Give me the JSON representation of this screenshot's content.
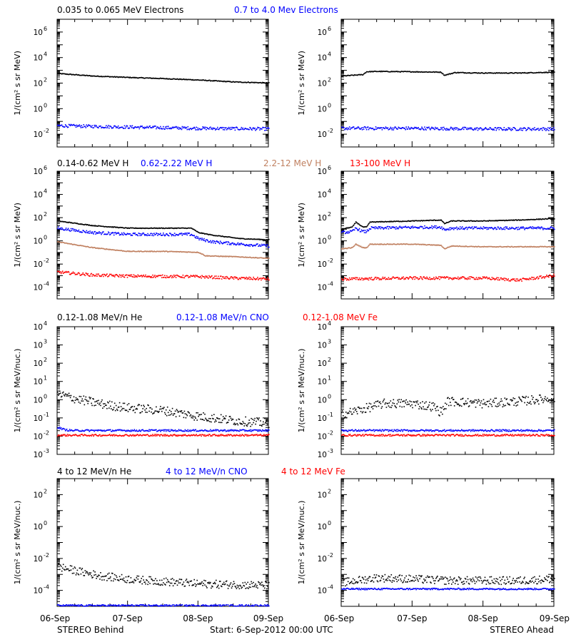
{
  "footer": {
    "left": "STEREO Behind",
    "center": "Start:  6-Sep-2012 00:00 UTC",
    "right": "STEREO Ahead"
  },
  "x_ticks": [
    "06-Sep",
    "07-Sep",
    "08-Sep",
    "09-Sep"
  ],
  "colors": {
    "black": "#000000",
    "blue": "#0000ff",
    "tan": "#c08060",
    "red": "#ff0000"
  },
  "chart_data": [
    {
      "type": "scatter",
      "row": 1,
      "y_scale": "log",
      "ylabel": "1/(cm² s sr MeV)",
      "ylim": [
        0.001,
        10000000
      ],
      "y_tick_exponents": [
        6,
        4,
        2,
        0,
        -2
      ],
      "x_range_days": [
        0,
        3
      ],
      "series_names": [
        "0.035 to 0.065 MeV Electrons",
        "0.7 to 4.0 Mev Electrons"
      ],
      "series_colors": [
        "#000000",
        "#0000ff"
      ],
      "behind": [
        {
          "name": "0.035 to 0.065 MeV Electrons",
          "color": "#000000",
          "x": [
            0,
            0.5,
            1,
            1.5,
            2,
            2.5,
            3
          ],
          "y": [
            550,
            350,
            270,
            220,
            170,
            120,
            100
          ]
        },
        {
          "name": "0.7 to 4.0 Mev Electrons",
          "color": "#0000ff",
          "x": [
            0,
            1,
            2,
            3
          ],
          "y": [
            0.045,
            0.035,
            0.028,
            0.025
          ]
        }
      ],
      "ahead": [
        {
          "name": "0.035 to 0.065 MeV Electrons",
          "color": "#000000",
          "x": [
            0,
            0.3,
            0.35,
            0.5,
            1,
            1.4,
            1.45,
            1.6,
            2,
            2.5,
            3
          ],
          "y": [
            350,
            450,
            750,
            800,
            750,
            700,
            400,
            650,
            600,
            600,
            700
          ]
        },
        {
          "name": "0.7 to 4.0 Mev Electrons",
          "color": "#0000ff",
          "x": [
            0,
            1,
            2,
            3
          ],
          "y": [
            0.028,
            0.028,
            0.025,
            0.025
          ]
        }
      ]
    },
    {
      "type": "scatter",
      "row": 2,
      "y_scale": "log",
      "ylabel": "1/(cm² s sr MeV)",
      "ylim": [
        1e-05,
        1000000
      ],
      "y_tick_exponents": [
        6,
        4,
        2,
        0,
        -2,
        -4
      ],
      "x_range_days": [
        0,
        3
      ],
      "series_names": [
        "0.14-0.62 MeV H",
        "0.62-2.22 MeV H",
        "2.2-12 MeV H",
        "13-100 MeV H"
      ],
      "series_colors": [
        "#000000",
        "#0000ff",
        "#c08060",
        "#ff0000"
      ],
      "behind": [
        {
          "name": "0.14-0.62 MeV H",
          "color": "#000000",
          "x": [
            0,
            0.5,
            1,
            1.5,
            1.9,
            2.0,
            2.2,
            2.6,
            3
          ],
          "y": [
            50,
            20,
            12,
            12,
            12,
            5,
            3,
            1.5,
            1.2
          ]
        },
        {
          "name": "0.62-2.22 MeV H",
          "color": "#0000ff",
          "x": [
            0,
            0.5,
            1,
            1.5,
            1.9,
            2.0,
            2.2,
            2.6,
            3
          ],
          "y": [
            12,
            5,
            3.5,
            3.5,
            3.5,
            1.5,
            0.8,
            0.5,
            0.35
          ]
        },
        {
          "name": "2.2-12 MeV H",
          "color": "#c08060",
          "x": [
            0,
            0.5,
            1,
            1.5,
            2,
            2.1,
            2.6,
            3
          ],
          "y": [
            0.8,
            0.25,
            0.12,
            0.12,
            0.1,
            0.05,
            0.04,
            0.03
          ]
        },
        {
          "name": "13-100 MeV H",
          "color": "#ff0000",
          "x": [
            0,
            0.5,
            1,
            2,
            2.5,
            3
          ],
          "y": [
            0.002,
            0.0011,
            0.0009,
            0.0008,
            0.0006,
            0.0005
          ]
        }
      ],
      "ahead": [
        {
          "name": "0.14-0.62 MeV H",
          "color": "#000000",
          "x": [
            0,
            0.15,
            0.2,
            0.3,
            0.35,
            0.4,
            1,
            1.4,
            1.45,
            1.55,
            2,
            2.5,
            3
          ],
          "y": [
            10,
            15,
            40,
            15,
            15,
            40,
            50,
            60,
            30,
            50,
            50,
            60,
            80
          ]
        },
        {
          "name": "0.62-2.22 MeV H",
          "color": "#0000ff",
          "x": [
            0,
            0.15,
            0.2,
            0.3,
            0.35,
            0.4,
            1,
            1.4,
            1.45,
            1.55,
            2,
            2.5,
            3
          ],
          "y": [
            5,
            6,
            12,
            6,
            6,
            12,
            14,
            15,
            9,
            12,
            12,
            12,
            12
          ]
        },
        {
          "name": "2.2-12 MeV H",
          "color": "#c08060",
          "x": [
            0,
            0.15,
            0.2,
            0.3,
            0.35,
            0.4,
            1,
            1.4,
            1.45,
            1.55,
            2,
            2.5,
            3
          ],
          "y": [
            0.2,
            0.25,
            0.5,
            0.25,
            0.25,
            0.5,
            0.5,
            0.4,
            0.2,
            0.35,
            0.3,
            0.3,
            0.3
          ]
        },
        {
          "name": "13-100 MeV H",
          "color": "#ff0000",
          "x": [
            0,
            1,
            2,
            2.5,
            3
          ],
          "y": [
            0.0005,
            0.0006,
            0.0006,
            0.0004,
            0.001
          ]
        }
      ]
    },
    {
      "type": "scatter",
      "row": 3,
      "y_scale": "log",
      "ylabel": "1/(cm² s sr MeV/nuc.)",
      "ylim": [
        0.001,
        10000
      ],
      "y_tick_exponents": [
        4,
        3,
        2,
        1,
        0,
        -1,
        -2,
        -3
      ],
      "x_range_days": [
        0,
        3
      ],
      "series_names": [
        "0.12-1.08 MeV/n He",
        "0.12-1.08 MeV/n CNO",
        "0.12-1.08 MeV Fe"
      ],
      "series_colors": [
        "#000000",
        "#0000ff",
        "#ff0000"
      ],
      "behind": [
        {
          "name": "0.12-1.08 MeV/n He",
          "color": "#000000",
          "x": [
            0,
            0.3,
            0.7,
            1,
            1.5,
            2,
            2.5,
            3
          ],
          "y": [
            2,
            1,
            0.5,
            0.35,
            0.25,
            0.12,
            0.07,
            0.05
          ]
        },
        {
          "name": "0.12-1.08 MeV/n CNO",
          "color": "#0000ff",
          "x": [
            0,
            0.1,
            0.2,
            1,
            2,
            3
          ],
          "y": [
            0.03,
            0.022,
            0.02,
            0.02,
            0.02,
            0.02
          ]
        },
        {
          "name": "0.12-1.08 MeV Fe",
          "color": "#ff0000",
          "x": [
            0,
            1,
            2,
            3
          ],
          "y": [
            0.011,
            0.011,
            0.011,
            0.011
          ]
        }
      ],
      "ahead": [
        {
          "name": "0.12-1.08 MeV/n He",
          "color": "#000000",
          "x": [
            0,
            0.3,
            0.6,
            1,
            1.3,
            1.4,
            1.5,
            2,
            2.5,
            3
          ],
          "y": [
            0.15,
            0.3,
            0.6,
            0.6,
            0.4,
            0.2,
            0.8,
            0.6,
            0.8,
            1.2
          ]
        },
        {
          "name": "0.12-1.08 MeV/n CNO",
          "color": "#0000ff",
          "x": [
            0,
            1,
            2,
            3
          ],
          "y": [
            0.02,
            0.02,
            0.02,
            0.02
          ]
        },
        {
          "name": "0.12-1.08 MeV Fe",
          "color": "#ff0000",
          "x": [
            0,
            1,
            2,
            3
          ],
          "y": [
            0.011,
            0.011,
            0.011,
            0.011
          ]
        }
      ]
    },
    {
      "type": "scatter",
      "row": 4,
      "y_scale": "log",
      "ylabel": "1/(cm² s sr MeV/nuc.)",
      "ylim": [
        1e-05,
        1000
      ],
      "y_tick_exponents": [
        2,
        0,
        -2,
        -4
      ],
      "x_range_days": [
        0,
        3
      ],
      "series_names": [
        "4 to 12 MeV/n He",
        "4 to 12 MeV/n CNO",
        "4 to 12 MeV Fe"
      ],
      "series_colors": [
        "#000000",
        "#0000ff",
        "#ff0000"
      ],
      "behind": [
        {
          "name": "4 to 12 MeV/n He",
          "color": "#000000",
          "x": [
            0,
            0.3,
            0.6,
            1,
            1.5,
            2,
            3
          ],
          "y": [
            0.003,
            0.0015,
            0.0008,
            0.0005,
            0.00035,
            0.00025,
            0.0002
          ]
        },
        {
          "name": "4 to 12 MeV/n CNO",
          "color": "#0000ff",
          "x": [
            0,
            1,
            2,
            3
          ],
          "y": [
            1.1e-05,
            1.1e-05,
            1.1e-05,
            1.1e-05
          ]
        }
      ],
      "ahead": [
        {
          "name": "4 to 12 MeV/n He",
          "color": "#000000",
          "x": [
            0,
            0.5,
            1,
            1.5,
            2,
            2.5,
            3
          ],
          "y": [
            0.0003,
            0.0006,
            0.0005,
            0.0004,
            0.0004,
            0.0004,
            0.0005
          ]
        },
        {
          "name": "4 to 12 MeV/n CNO",
          "color": "#0000ff",
          "x": [
            0,
            1,
            2,
            3
          ],
          "y": [
            0.00012,
            0.00012,
            0.00012,
            0.00012
          ]
        }
      ]
    }
  ]
}
